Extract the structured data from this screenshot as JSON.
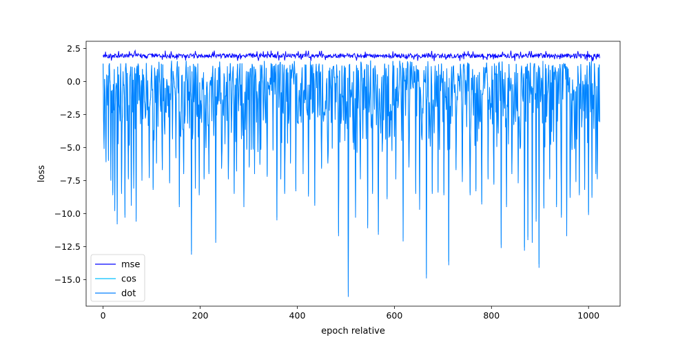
{
  "chart_data": {
    "type": "line",
    "title": "",
    "xlabel": "epoch relative",
    "ylabel": "loss",
    "xlim": [
      -35,
      1065
    ],
    "ylim": [
      -17.0,
      3.05
    ],
    "x_ticks": [
      0,
      200,
      400,
      600,
      800,
      1000
    ],
    "x_tick_labels": [
      "0",
      "200",
      "400",
      "600",
      "800",
      "1000"
    ],
    "y_ticks": [
      2.5,
      0.0,
      -2.5,
      -5.0,
      -7.5,
      -10.0,
      -12.5,
      -15.0
    ],
    "y_tick_labels": [
      "2.5",
      "0.0",
      "−2.5",
      "−5.0",
      "−7.5",
      "−10.0",
      "−12.5",
      "−15.0"
    ],
    "grid": false,
    "legend_position": "lower-left",
    "n_points": 1024,
    "series": [
      {
        "name": "mse",
        "color": "#0000ff",
        "mean": 1.95,
        "min": 1.55,
        "max": 2.35
      },
      {
        "name": "cos",
        "color": "#00bfff"
      },
      {
        "name": "dot",
        "color": "#007fff",
        "upper_envelope": 1.4,
        "typical_low": -5.0,
        "spikes": [
          [
            2,
            -5.1
          ],
          [
            6,
            -6.1
          ],
          [
            11,
            -6.0
          ],
          [
            16,
            -7.5
          ],
          [
            20,
            -8.6
          ],
          [
            24,
            -9.8
          ],
          [
            29,
            -10.8
          ],
          [
            38,
            -8.5
          ],
          [
            45,
            -10.3
          ],
          [
            52,
            -7.4
          ],
          [
            58,
            -9.4
          ],
          [
            63,
            -8.1
          ],
          [
            68,
            -10.6
          ],
          [
            80,
            -7.5
          ],
          [
            95,
            -7.3
          ],
          [
            103,
            -8.2
          ],
          [
            110,
            -6.2
          ],
          [
            122,
            -6.7
          ],
          [
            137,
            -7.7
          ],
          [
            150,
            -5.8
          ],
          [
            157,
            -9.5
          ],
          [
            166,
            -7.0
          ],
          [
            182,
            -13.1
          ],
          [
            190,
            -8.1
          ],
          [
            198,
            -8.6
          ],
          [
            208,
            -7.4
          ],
          [
            218,
            -7.0
          ],
          [
            232,
            -12.2
          ],
          [
            244,
            -6.6
          ],
          [
            258,
            -7.4
          ],
          [
            270,
            -8.5
          ],
          [
            275,
            -6.8
          ],
          [
            290,
            -9.5
          ],
          [
            301,
            -6.5
          ],
          [
            312,
            -7.0
          ],
          [
            323,
            -6.3
          ],
          [
            338,
            -7.2
          ],
          [
            358,
            -10.5
          ],
          [
            366,
            -7.4
          ],
          [
            374,
            -8.5
          ],
          [
            386,
            -6.2
          ],
          [
            397,
            -8.3
          ],
          [
            412,
            -7.0
          ],
          [
            423,
            -8.7
          ],
          [
            436,
            -9.4
          ],
          [
            450,
            -6.6
          ],
          [
            463,
            -6.2
          ],
          [
            485,
            -11.7
          ],
          [
            505,
            -16.3
          ],
          [
            520,
            -10.3
          ],
          [
            530,
            -7.4
          ],
          [
            545,
            -11.1
          ],
          [
            555,
            -8.5
          ],
          [
            567,
            -11.6
          ],
          [
            585,
            -8.9
          ],
          [
            603,
            -7.4
          ],
          [
            618,
            -12.1
          ],
          [
            630,
            -6.5
          ],
          [
            644,
            -8.5
          ],
          [
            652,
            -9.7
          ],
          [
            666,
            -14.9
          ],
          [
            678,
            -8.5
          ],
          [
            690,
            -8.4
          ],
          [
            702,
            -8.6
          ],
          [
            712,
            -13.9
          ],
          [
            727,
            -6.7
          ],
          [
            740,
            -7.6
          ],
          [
            756,
            -8.6
          ],
          [
            768,
            -8.3
          ],
          [
            780,
            -9.3
          ],
          [
            793,
            -7.4
          ],
          [
            805,
            -7.8
          ],
          [
            820,
            -12.6
          ],
          [
            831,
            -9.5
          ],
          [
            842,
            -7.0
          ],
          [
            855,
            -7.7
          ],
          [
            868,
            -12.8
          ],
          [
            875,
            -12.0
          ],
          [
            884,
            -12.2
          ],
          [
            892,
            -10.6
          ],
          [
            898,
            -14.1
          ],
          [
            908,
            -9.6
          ],
          [
            920,
            -7.4
          ],
          [
            934,
            -9.5
          ],
          [
            944,
            -10.3
          ],
          [
            955,
            -11.7
          ],
          [
            962,
            -8.8
          ],
          [
            974,
            -7.6
          ],
          [
            981,
            -8.6
          ],
          [
            992,
            -8.2
          ],
          [
            1000,
            -10.1
          ],
          [
            1007,
            -8.8
          ],
          [
            1015,
            -7.0
          ],
          [
            1018,
            -7.4
          ]
        ]
      }
    ]
  }
}
